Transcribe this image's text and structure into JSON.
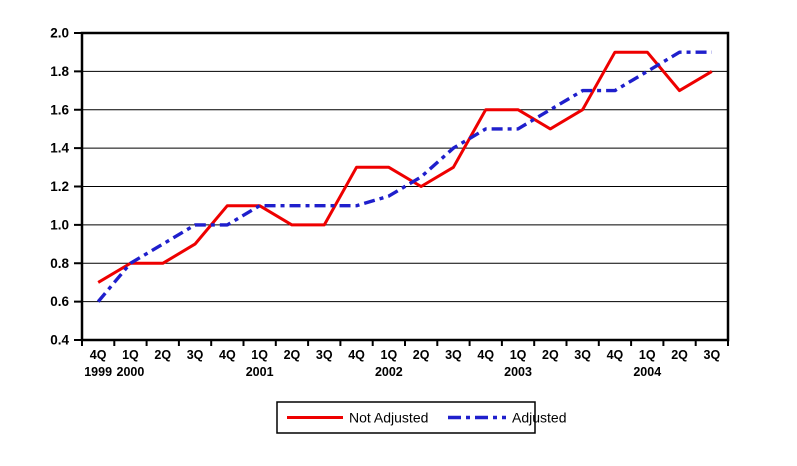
{
  "chart_data": {
    "type": "line",
    "title": "",
    "xlabel": "",
    "ylabel": "",
    "categories": [
      "4Q 1999",
      "1Q 2000",
      "2Q 2000",
      "3Q 2000",
      "4Q 2000",
      "1Q 2001",
      "2Q 2001",
      "3Q 2001",
      "4Q 2001",
      "1Q 2002",
      "2Q 2002",
      "3Q 2002",
      "4Q 2002",
      "1Q 2003",
      "2Q 2003",
      "3Q 2003",
      "4Q 2003",
      "1Q 2004",
      "2Q 2004",
      "3Q 2004"
    ],
    "quarter_labels": [
      "4Q",
      "1Q",
      "2Q",
      "3Q",
      "4Q",
      "1Q",
      "2Q",
      "3Q",
      "4Q",
      "1Q",
      "2Q",
      "3Q",
      "4Q",
      "1Q",
      "2Q",
      "3Q",
      "4Q",
      "1Q",
      "2Q",
      "3Q"
    ],
    "year_labels": [
      {
        "text": "1999",
        "category_index": 0
      },
      {
        "text": "2000",
        "category_index": 1
      },
      {
        "text": "2001",
        "category_index": 5
      },
      {
        "text": "2002",
        "category_index": 9
      },
      {
        "text": "2003",
        "category_index": 13
      },
      {
        "text": "2004",
        "category_index": 17
      }
    ],
    "series": [
      {
        "name": "Not Adjusted",
        "color": "#ee0000",
        "line_style": "solid",
        "values": [
          0.7,
          0.8,
          0.8,
          0.9,
          1.1,
          1.1,
          1.0,
          1.0,
          1.3,
          1.3,
          1.2,
          1.3,
          1.6,
          1.6,
          1.5,
          1.6,
          1.9,
          1.9,
          1.7,
          1.8
        ]
      },
      {
        "name": "Adjusted",
        "color": "#1f1fcc",
        "line_style": "dash-dot",
        "values": [
          0.6,
          0.8,
          0.9,
          1.0,
          1.0,
          1.1,
          1.1,
          1.1,
          1.1,
          1.15,
          1.25,
          1.4,
          1.5,
          1.5,
          1.6,
          1.7,
          1.7,
          1.8,
          1.9,
          1.9
        ]
      }
    ],
    "ylim": [
      0.4,
      2.0
    ],
    "y_tick_labels": [
      "0.4",
      "0.6",
      "0.8",
      "1.0",
      "1.2",
      "1.4",
      "1.6",
      "1.8",
      "2.0"
    ],
    "y_tick_step": 0.2,
    "grid": true,
    "grid_color": "#000000",
    "axis_color": "#000000",
    "background_color": "#ffffff",
    "legend_position": "bottom-center",
    "legend_border_color": "#000000"
  }
}
